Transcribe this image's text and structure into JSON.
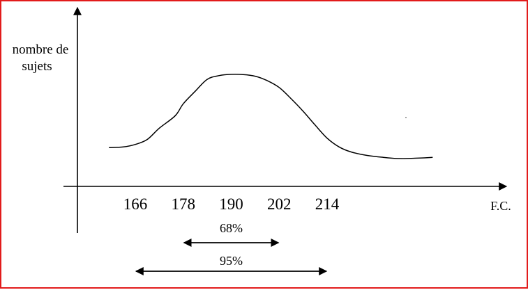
{
  "chart_data": {
    "type": "line",
    "title": "",
    "ylabel": [
      "nombre de",
      "sujets"
    ],
    "xlabel": "F.C.",
    "x_ticks": [
      166,
      178,
      190,
      202,
      214
    ],
    "curve": {
      "x": [
        159.4,
        163,
        166,
        169,
        172,
        176,
        178,
        181,
        184,
        187,
        190,
        193,
        196,
        199,
        202,
        205,
        208,
        211,
        214,
        217,
        220,
        224,
        228,
        232,
        236,
        240.4
      ],
      "y": [
        0.31,
        0.315,
        0.335,
        0.375,
        0.465,
        0.565,
        0.66,
        0.76,
        0.855,
        0.885,
        0.895,
        0.893,
        0.88,
        0.845,
        0.79,
        0.7,
        0.6,
        0.49,
        0.385,
        0.315,
        0.275,
        0.247,
        0.232,
        0.222,
        0.225,
        0.232
      ]
    },
    "intervals": [
      {
        "label": "68%",
        "from": 178,
        "to": 202
      },
      {
        "label": "95%",
        "from": 166,
        "to": 214
      }
    ],
    "grid": false,
    "legend": "none"
  }
}
